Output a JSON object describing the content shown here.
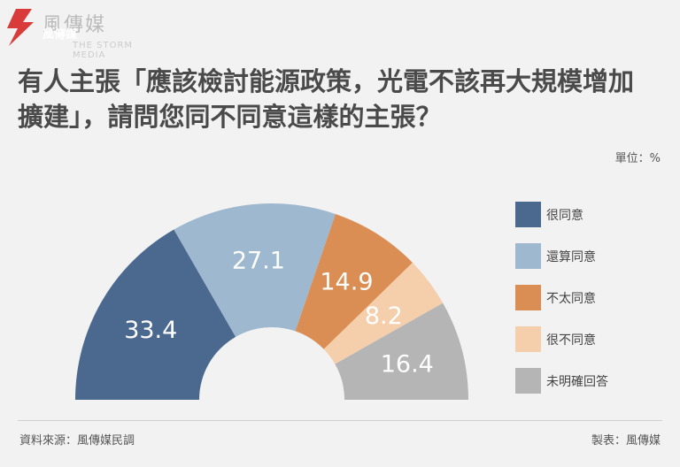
{
  "brand": {
    "name": "風傳媒",
    "english": "THE STORM MEDIA",
    "accent": "#d93a3a"
  },
  "title": "有人主張「應該檢討能源政策，光電不該再大規模增加擴建」，請問您同不同意這樣的主張？",
  "unit_label": "單位：%",
  "source": "資料來源：風傳媒民調",
  "maker": "製表：風傳媒",
  "chart_data": {
    "type": "pie",
    "style": "half-donut",
    "categories": [
      "很同意",
      "還算同意",
      "不太同意",
      "很不同意",
      "未明確回答"
    ],
    "values": [
      33.4,
      27.1,
      14.9,
      8.2,
      16.4
    ],
    "colors": [
      "#4b698f",
      "#9db8cf",
      "#db8e54",
      "#f5cfac",
      "#b5b5b5"
    ],
    "data_labels": [
      "33.4",
      "27.1",
      "14.9",
      "8.2",
      "16.4"
    ],
    "legend_position": "right"
  }
}
